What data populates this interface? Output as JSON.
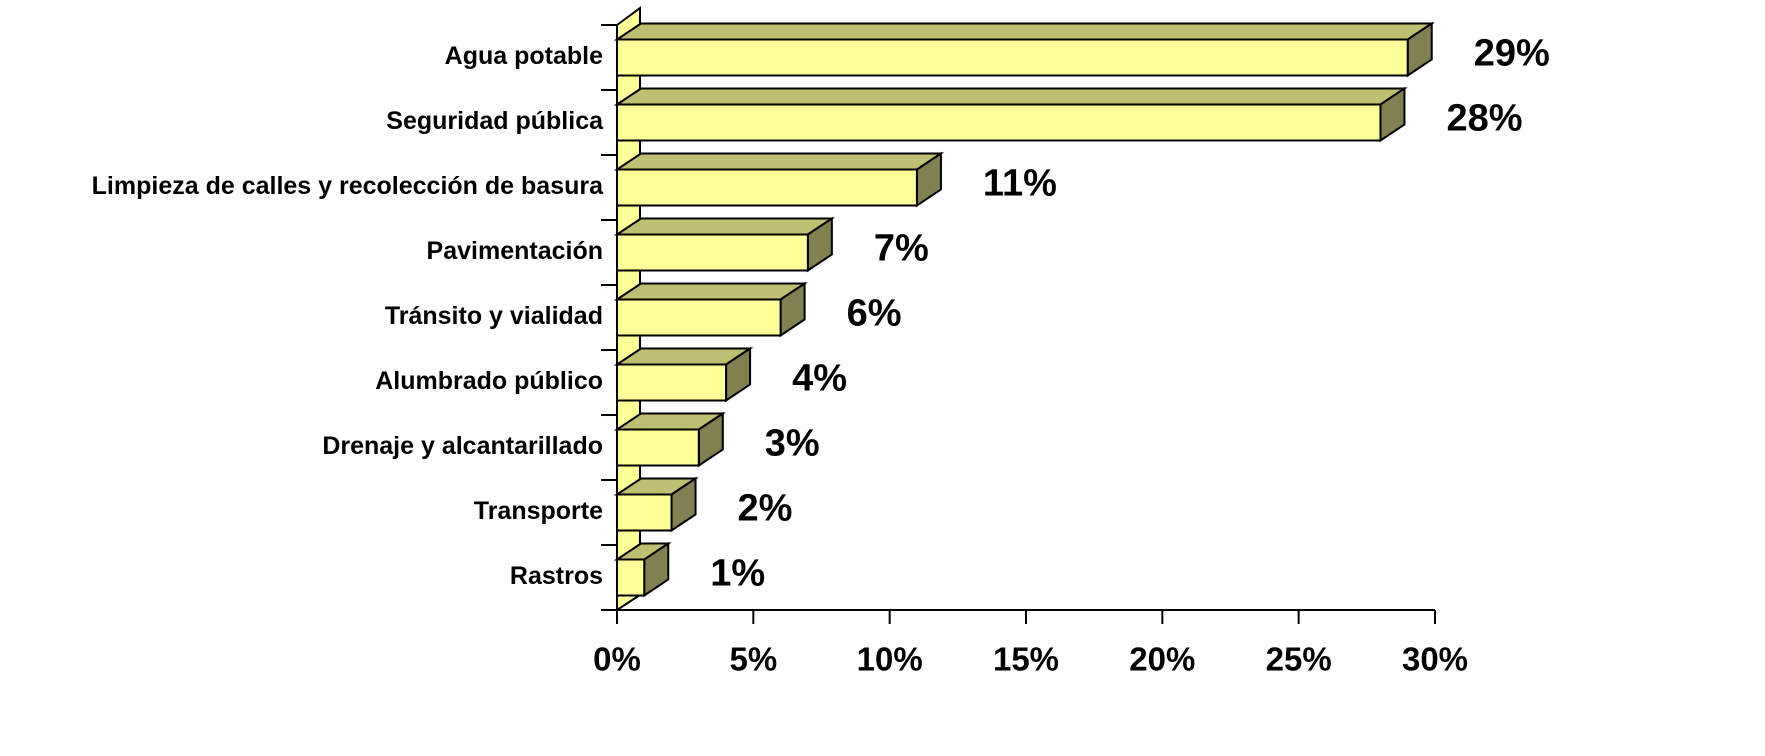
{
  "chart_data": {
    "type": "bar3d_horizontal",
    "categories": [
      "Agua potable",
      "Seguridad pública",
      "Limpieza de calles y recolección de basura",
      "Pavimentación",
      "Tránsito y vialidad",
      "Alumbrado público",
      "Drenaje y alcantarillado",
      "Transporte",
      "Rastros"
    ],
    "values": [
      29,
      28,
      11,
      7,
      6,
      4,
      3,
      2,
      1
    ],
    "value_labels": [
      "29%",
      "28%",
      "11%",
      "7%",
      "6%",
      "4%",
      "3%",
      "2%",
      "1%"
    ],
    "color": "#ffff99",
    "xlim": [
      0,
      30
    ],
    "xticks": [
      {
        "value": 0,
        "label": "0%"
      },
      {
        "value": 5,
        "label": "5%"
      },
      {
        "value": 10,
        "label": "10%"
      },
      {
        "value": 15,
        "label": "15%"
      },
      {
        "value": 20,
        "label": "20%"
      },
      {
        "value": 25,
        "label": "25%"
      },
      {
        "value": 30,
        "label": "30%"
      }
    ]
  }
}
